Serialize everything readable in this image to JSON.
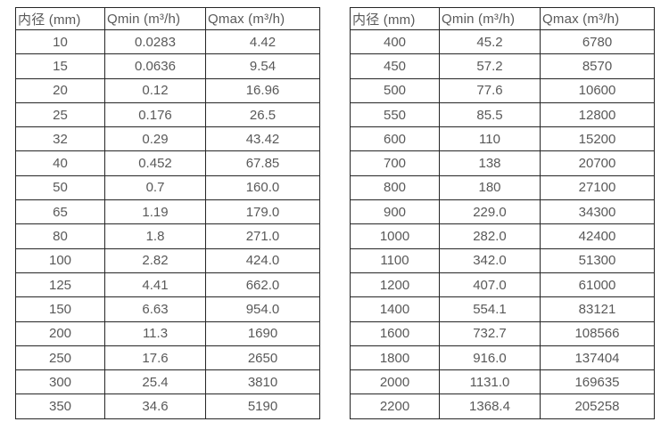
{
  "colors": {
    "background": "#ffffff",
    "table_border": "#262626",
    "text": "#595959"
  },
  "tables": [
    {
      "name": "flow-spec-table-small-diameters",
      "headers": [
        "内径 (mm)",
        "Qmin (m³/h)",
        "Qmax (m³/h)"
      ],
      "rows": [
        [
          "10",
          "0.0283",
          "4.42"
        ],
        [
          "15",
          "0.0636",
          "9.54"
        ],
        [
          "20",
          "0.12",
          "16.96"
        ],
        [
          "25",
          "0.176",
          "26.5"
        ],
        [
          "32",
          "0.29",
          "43.42"
        ],
        [
          "40",
          "0.452",
          "67.85"
        ],
        [
          "50",
          "0.7",
          "160.0"
        ],
        [
          "65",
          "1.19",
          "179.0"
        ],
        [
          "80",
          "1.8",
          "271.0"
        ],
        [
          "100",
          "2.82",
          "424.0"
        ],
        [
          "125",
          "4.41",
          "662.0"
        ],
        [
          "150",
          "6.63",
          "954.0"
        ],
        [
          "200",
          "11.3",
          "1690"
        ],
        [
          "250",
          "17.6",
          "2650"
        ],
        [
          "300",
          "25.4",
          "3810"
        ],
        [
          "350",
          "34.6",
          "5190"
        ]
      ]
    },
    {
      "name": "flow-spec-table-large-diameters",
      "headers": [
        "内径 (mm)",
        "Qmin (m³/h)",
        "Qmax (m³/h)"
      ],
      "rows": [
        [
          "400",
          "45.2",
          "6780"
        ],
        [
          "450",
          "57.2",
          "8570"
        ],
        [
          "500",
          "77.6",
          "10600"
        ],
        [
          "550",
          "85.5",
          "12800"
        ],
        [
          "600",
          "110",
          "15200"
        ],
        [
          "700",
          "138",
          "20700"
        ],
        [
          "800",
          "180",
          "27100"
        ],
        [
          "900",
          "229.0",
          "34300"
        ],
        [
          "1000",
          "282.0",
          "42400"
        ],
        [
          "1100",
          "342.0",
          "51300"
        ],
        [
          "1200",
          "407.0",
          "61000"
        ],
        [
          "1400",
          "554.1",
          "83121"
        ],
        [
          "1600",
          "732.7",
          "108566"
        ],
        [
          "1800",
          "916.0",
          "137404"
        ],
        [
          "2000",
          "1131.0",
          "169635"
        ],
        [
          "2200",
          "1368.4",
          "205258"
        ]
      ]
    }
  ]
}
